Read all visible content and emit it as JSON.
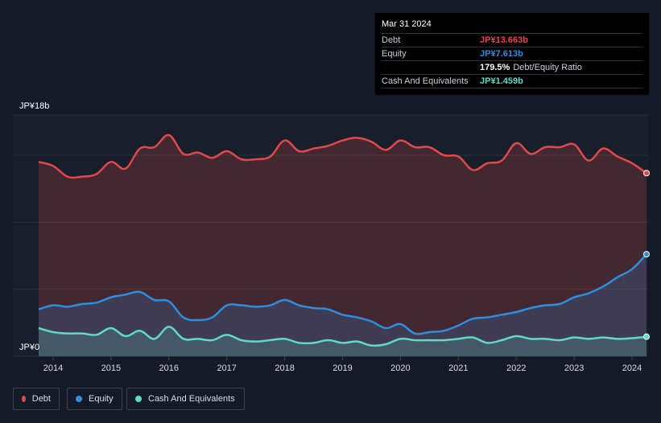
{
  "tooltip": {
    "date": "Mar 31 2024",
    "debt_label": "Debt",
    "debt_value": "JP¥13.663b",
    "equity_label": "Equity",
    "equity_value": "JP¥7.613b",
    "ratio_value": "179.5%",
    "ratio_label": "Debt/Equity Ratio",
    "cash_label": "Cash And Equivalents",
    "cash_value": "JP¥1.459b"
  },
  "legend": {
    "debt": "Debt",
    "equity": "Equity",
    "cash": "Cash And Equivalents"
  },
  "colors": {
    "debt": "#e2484a",
    "equity": "#2d8ee0",
    "cash": "#5fd9c8",
    "background": "#151b26"
  },
  "chart_data": {
    "type": "area",
    "title": "",
    "y_top_label": "JP¥18b",
    "y_bottom_label": "JP¥0",
    "ylim": [
      0,
      18
    ],
    "xlim": [
      2013.75,
      2024.25
    ],
    "x_ticks": [
      "2014",
      "2015",
      "2016",
      "2017",
      "2018",
      "2019",
      "2020",
      "2021",
      "2022",
      "2023",
      "2024"
    ],
    "grid": true,
    "series": [
      {
        "name": "Debt",
        "x": [
          2013.75,
          2014.0,
          2014.25,
          2014.5,
          2014.75,
          2015.0,
          2015.25,
          2015.5,
          2015.75,
          2016.0,
          2016.25,
          2016.5,
          2016.75,
          2017.0,
          2017.25,
          2017.5,
          2017.75,
          2018.0,
          2018.25,
          2018.5,
          2018.75,
          2019.0,
          2019.25,
          2019.5,
          2019.75,
          2020.0,
          2020.25,
          2020.5,
          2020.75,
          2021.0,
          2021.25,
          2021.5,
          2021.75,
          2022.0,
          2022.25,
          2022.5,
          2022.75,
          2023.0,
          2023.25,
          2023.5,
          2023.75,
          2024.0,
          2024.25
        ],
        "values": [
          14.5,
          14.2,
          13.4,
          13.4,
          13.6,
          14.5,
          14.0,
          15.5,
          15.6,
          16.5,
          15.1,
          15.2,
          14.8,
          15.3,
          14.7,
          14.7,
          14.9,
          16.1,
          15.3,
          15.5,
          15.7,
          16.1,
          16.3,
          16.0,
          15.4,
          16.1,
          15.6,
          15.6,
          15.0,
          14.9,
          13.9,
          14.4,
          14.6,
          15.9,
          15.1,
          15.6,
          15.6,
          15.8,
          14.6,
          15.5,
          14.9,
          14.4,
          13.663
        ]
      },
      {
        "name": "Equity",
        "x": [
          2013.75,
          2014.0,
          2014.25,
          2014.5,
          2014.75,
          2015.0,
          2015.25,
          2015.5,
          2015.75,
          2016.0,
          2016.25,
          2016.5,
          2016.75,
          2017.0,
          2017.25,
          2017.5,
          2017.75,
          2018.0,
          2018.25,
          2018.5,
          2018.75,
          2019.0,
          2019.25,
          2019.5,
          2019.75,
          2020.0,
          2020.25,
          2020.5,
          2020.75,
          2021.0,
          2021.25,
          2021.5,
          2021.75,
          2022.0,
          2022.25,
          2022.5,
          2022.75,
          2023.0,
          2023.25,
          2023.5,
          2023.75,
          2024.0,
          2024.25
        ],
        "values": [
          3.5,
          3.8,
          3.7,
          3.9,
          4.0,
          4.4,
          4.6,
          4.8,
          4.2,
          4.1,
          2.9,
          2.7,
          2.9,
          3.8,
          3.8,
          3.7,
          3.8,
          4.2,
          3.8,
          3.6,
          3.5,
          3.1,
          2.9,
          2.6,
          2.1,
          2.4,
          1.7,
          1.8,
          1.9,
          2.3,
          2.8,
          2.9,
          3.1,
          3.3,
          3.6,
          3.8,
          3.9,
          4.4,
          4.7,
          5.2,
          5.9,
          6.5,
          7.613
        ]
      },
      {
        "name": "Cash And Equivalents",
        "x": [
          2013.75,
          2014.0,
          2014.25,
          2014.5,
          2014.75,
          2015.0,
          2015.25,
          2015.5,
          2015.75,
          2016.0,
          2016.25,
          2016.5,
          2016.75,
          2017.0,
          2017.25,
          2017.5,
          2017.75,
          2018.0,
          2018.25,
          2018.5,
          2018.75,
          2019.0,
          2019.25,
          2019.5,
          2019.75,
          2020.0,
          2020.25,
          2020.5,
          2020.75,
          2021.0,
          2021.25,
          2021.5,
          2021.75,
          2022.0,
          2022.25,
          2022.5,
          2022.75,
          2023.0,
          2023.25,
          2023.5,
          2023.75,
          2024.0,
          2024.25
        ],
        "values": [
          2.1,
          1.8,
          1.7,
          1.7,
          1.6,
          2.1,
          1.5,
          1.9,
          1.3,
          2.2,
          1.3,
          1.3,
          1.2,
          1.6,
          1.2,
          1.1,
          1.2,
          1.3,
          1.0,
          1.0,
          1.2,
          1.0,
          1.1,
          0.8,
          0.9,
          1.3,
          1.2,
          1.2,
          1.2,
          1.3,
          1.4,
          1.0,
          1.2,
          1.5,
          1.3,
          1.3,
          1.2,
          1.4,
          1.3,
          1.4,
          1.3,
          1.35,
          1.459
        ]
      }
    ]
  }
}
